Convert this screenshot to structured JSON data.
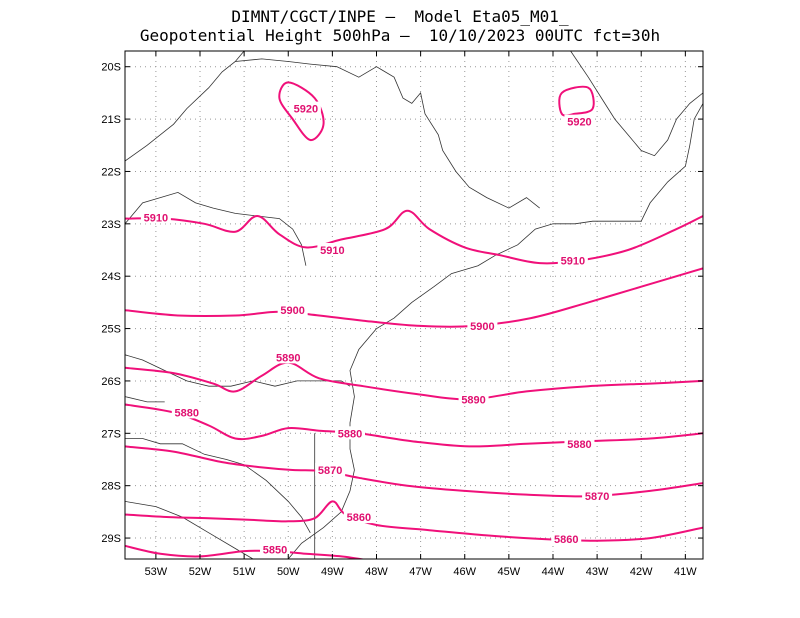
{
  "header": {
    "line1": "DIMNT/CGCT/INPE –  Model Eta05_M01_",
    "line2": "Geopotential Height 500hPa –  10/10/2023 00UTC fct=30h"
  },
  "axes": {
    "lat_labels": [
      "20S",
      "21S",
      "22S",
      "23S",
      "24S",
      "25S",
      "26S",
      "27S",
      "28S",
      "29S"
    ],
    "lon_labels": [
      "53W",
      "52W",
      "51W",
      "50W",
      "49W",
      "48W",
      "47W",
      "46W",
      "45W",
      "44W",
      "43W",
      "42W",
      "41W"
    ],
    "lat_range": [
      -29.4,
      -19.7
    ],
    "lon_range": [
      -53.7,
      -40.6
    ]
  },
  "colors": {
    "contour": "#f0107a",
    "label": "#e01070",
    "coast": "#333333",
    "grid": "#999999"
  },
  "contours": [
    {
      "value": "5920",
      "label_pos": [
        -49.6,
        -20.8
      ],
      "points": [
        [
          -50.0,
          -20.3
        ],
        [
          -49.4,
          -20.6
        ],
        [
          -49.2,
          -21.1
        ],
        [
          -49.5,
          -21.4
        ],
        [
          -49.9,
          -21.0
        ],
        [
          -50.2,
          -20.6
        ]
      ],
      "closed": true
    },
    {
      "value": "5920",
      "label_pos": [
        -43.4,
        -21.05
      ],
      "points": [
        [
          -43.8,
          -20.5
        ],
        [
          -43.2,
          -20.4
        ],
        [
          -43.1,
          -20.8
        ],
        [
          -43.5,
          -20.9
        ],
        [
          -43.8,
          -20.9
        ]
      ],
      "closed": true
    },
    {
      "value": "5910",
      "label_pos": [
        -53.0,
        -22.88
      ],
      "points": [
        [
          -53.7,
          -22.9
        ],
        [
          -52.8,
          -22.9
        ],
        [
          -51.9,
          -23.0
        ],
        [
          -51.2,
          -23.15
        ],
        [
          -50.7,
          -22.85
        ],
        [
          -50.2,
          -23.2
        ],
        [
          -49.6,
          -23.45
        ],
        [
          -48.8,
          -23.3
        ],
        [
          -47.8,
          -23.1
        ],
        [
          -47.3,
          -22.75
        ],
        [
          -46.8,
          -23.1
        ],
        [
          -46.0,
          -23.45
        ],
        [
          -45.2,
          -23.6
        ],
        [
          -44.3,
          -23.75
        ],
        [
          -43.4,
          -23.7
        ],
        [
          -42.3,
          -23.5
        ],
        [
          -41.2,
          -23.1
        ],
        [
          -40.6,
          -22.85
        ]
      ],
      "closed": false
    },
    {
      "value": "5910",
      "label_pos": [
        -49.0,
        -23.5
      ],
      "points": [],
      "closed": false
    },
    {
      "value": "5910",
      "label_pos": [
        -43.55,
        -23.7
      ],
      "points": [],
      "closed": false
    },
    {
      "value": "5900",
      "label_pos": [
        -49.9,
        -24.65
      ],
      "points": [
        [
          -53.7,
          -24.65
        ],
        [
          -52.5,
          -24.75
        ],
        [
          -51.2,
          -24.75
        ],
        [
          -50.2,
          -24.68
        ],
        [
          -49.3,
          -24.75
        ],
        [
          -48.3,
          -24.85
        ],
        [
          -47.0,
          -24.95
        ],
        [
          -45.8,
          -24.95
        ],
        [
          -44.5,
          -24.8
        ],
        [
          -43.2,
          -24.5
        ],
        [
          -42.0,
          -24.2
        ],
        [
          -40.6,
          -23.85
        ]
      ],
      "closed": false
    },
    {
      "value": "5900",
      "label_pos": [
        -45.6,
        -24.95
      ],
      "points": [],
      "closed": false
    },
    {
      "value": "5890",
      "label_pos": [
        -50.0,
        -25.55
      ],
      "points": [
        [
          -53.7,
          -25.75
        ],
        [
          -52.6,
          -25.85
        ],
        [
          -51.7,
          -26.05
        ],
        [
          -51.2,
          -26.2
        ],
        [
          -50.6,
          -25.9
        ],
        [
          -50.0,
          -25.65
        ],
        [
          -49.3,
          -25.95
        ],
        [
          -48.3,
          -26.1
        ],
        [
          -47.1,
          -26.25
        ],
        [
          -45.9,
          -26.35
        ],
        [
          -44.6,
          -26.2
        ],
        [
          -43.2,
          -26.1
        ],
        [
          -41.8,
          -26.05
        ],
        [
          -40.6,
          -26.0
        ]
      ],
      "closed": false
    },
    {
      "value": "5890",
      "label_pos": [
        -45.8,
        -26.35
      ],
      "points": [],
      "closed": false
    },
    {
      "value": "5880",
      "label_pos": [
        -52.3,
        -26.6
      ],
      "points": [
        [
          -53.7,
          -26.45
        ],
        [
          -52.6,
          -26.6
        ],
        [
          -51.8,
          -26.85
        ],
        [
          -51.2,
          -27.1
        ],
        [
          -50.6,
          -27.05
        ],
        [
          -50.0,
          -26.9
        ],
        [
          -49.3,
          -26.95
        ],
        [
          -48.4,
          -27.0
        ],
        [
          -47.2,
          -27.15
        ],
        [
          -45.9,
          -27.25
        ],
        [
          -44.6,
          -27.2
        ],
        [
          -43.2,
          -27.15
        ],
        [
          -41.8,
          -27.1
        ],
        [
          -40.6,
          -27.0
        ]
      ],
      "closed": false
    },
    {
      "value": "5880",
      "label_pos": [
        -48.6,
        -27.0
      ],
      "points": [],
      "closed": false
    },
    {
      "value": "5880",
      "label_pos": [
        -43.4,
        -27.2
      ],
      "points": [],
      "closed": false
    },
    {
      "value": "5870",
      "label_pos": [
        -49.05,
        -27.7
      ],
      "points": [
        [
          -53.7,
          -27.25
        ],
        [
          -52.6,
          -27.35
        ],
        [
          -51.5,
          -27.55
        ],
        [
          -50.6,
          -27.65
        ],
        [
          -49.9,
          -27.7
        ],
        [
          -49.2,
          -27.72
        ],
        [
          -48.4,
          -27.85
        ],
        [
          -47.3,
          -28.0
        ],
        [
          -46.0,
          -28.1
        ],
        [
          -44.6,
          -28.17
        ],
        [
          -43.2,
          -28.2
        ],
        [
          -41.8,
          -28.1
        ],
        [
          -40.6,
          -27.95
        ]
      ],
      "closed": false
    },
    {
      "value": "5870",
      "label_pos": [
        -43.0,
        -28.2
      ],
      "points": [],
      "closed": false
    },
    {
      "value": "5860",
      "label_pos": [
        -48.4,
        -28.6
      ],
      "points": [
        [
          -53.7,
          -28.55
        ],
        [
          -52.7,
          -28.6
        ],
        [
          -51.8,
          -28.62
        ],
        [
          -50.9,
          -28.65
        ],
        [
          -50.0,
          -28.68
        ],
        [
          -49.4,
          -28.62
        ],
        [
          -49.0,
          -28.3
        ],
        [
          -48.7,
          -28.55
        ],
        [
          -48.0,
          -28.75
        ],
        [
          -46.8,
          -28.85
        ],
        [
          -45.5,
          -28.95
        ],
        [
          -44.2,
          -29.02
        ],
        [
          -43.0,
          -29.05
        ],
        [
          -41.8,
          -29.0
        ],
        [
          -40.6,
          -28.8
        ]
      ],
      "closed": false
    },
    {
      "value": "5860",
      "label_pos": [
        -43.7,
        -29.02
      ],
      "points": [],
      "closed": false
    },
    {
      "value": "5850",
      "label_pos": [
        -50.3,
        -29.22
      ],
      "points": [
        [
          -53.7,
          -29.15
        ],
        [
          -52.9,
          -29.3
        ],
        [
          -52.0,
          -29.35
        ],
        [
          -51.0,
          -29.25
        ],
        [
          -50.3,
          -29.25
        ],
        [
          -49.6,
          -29.3
        ],
        [
          -48.8,
          -29.35
        ],
        [
          -48.0,
          -29.45
        ]
      ],
      "closed": false
    }
  ],
  "coastlines": [
    [
      [
        -53.7,
        -23.0
      ],
      [
        -53.3,
        -22.6
      ],
      [
        -52.9,
        -22.5
      ],
      [
        -52.5,
        -22.4
      ],
      [
        -52.1,
        -22.6
      ],
      [
        -51.7,
        -22.7
      ],
      [
        -51.2,
        -22.8
      ],
      [
        -50.7,
        -22.85
      ],
      [
        -50.2,
        -22.9
      ],
      [
        -49.9,
        -23.1
      ],
      [
        -49.7,
        -23.4
      ],
      [
        -49.6,
        -23.8
      ]
    ],
    [
      [
        -53.7,
        -21.8
      ],
      [
        -53.2,
        -21.5
      ],
      [
        -52.6,
        -21.1
      ],
      [
        -52.3,
        -20.8
      ],
      [
        -51.8,
        -20.4
      ],
      [
        -51.5,
        -20.1
      ],
      [
        -51.2,
        -19.9
      ],
      [
        -51.0,
        -19.7
      ]
    ],
    [
      [
        -51.2,
        -19.9
      ],
      [
        -50.6,
        -19.85
      ],
      [
        -50.0,
        -19.9
      ],
      [
        -49.5,
        -19.95
      ],
      [
        -48.9,
        -20.0
      ],
      [
        -48.4,
        -20.2
      ],
      [
        -48.0,
        -20.0
      ],
      [
        -47.6,
        -20.2
      ],
      [
        -47.4,
        -20.6
      ],
      [
        -47.2,
        -20.7
      ],
      [
        -47.0,
        -20.5
      ],
      [
        -46.9,
        -20.9
      ],
      [
        -46.6,
        -21.3
      ],
      [
        -46.5,
        -21.6
      ],
      [
        -46.2,
        -22.0
      ],
      [
        -45.9,
        -22.3
      ],
      [
        -45.5,
        -22.5
      ],
      [
        -45.0,
        -22.7
      ],
      [
        -44.6,
        -22.5
      ],
      [
        -44.3,
        -22.7
      ]
    ],
    [
      [
        -43.6,
        -19.7
      ],
      [
        -43.2,
        -20.2
      ],
      [
        -42.9,
        -20.6
      ],
      [
        -42.6,
        -21.0
      ],
      [
        -42.3,
        -21.3
      ],
      [
        -42.0,
        -21.6
      ],
      [
        -41.7,
        -21.7
      ],
      [
        -41.4,
        -21.4
      ],
      [
        -41.2,
        -21.0
      ],
      [
        -40.9,
        -20.7
      ],
      [
        -40.6,
        -20.5
      ]
    ],
    [
      [
        -48.0,
        -25.0
      ],
      [
        -47.6,
        -24.8
      ],
      [
        -47.2,
        -24.5
      ],
      [
        -46.7,
        -24.2
      ],
      [
        -46.3,
        -23.95
      ],
      [
        -45.7,
        -23.8
      ],
      [
        -45.3,
        -23.6
      ],
      [
        -44.8,
        -23.4
      ],
      [
        -44.4,
        -23.1
      ],
      [
        -44.0,
        -23.0
      ],
      [
        -43.5,
        -23.0
      ],
      [
        -43.1,
        -22.95
      ],
      [
        -42.6,
        -22.95
      ],
      [
        -42.0,
        -22.95
      ],
      [
        -41.8,
        -22.6
      ],
      [
        -41.4,
        -22.2
      ],
      [
        -41.0,
        -21.9
      ],
      [
        -40.9,
        -21.5
      ],
      [
        -40.8,
        -21.0
      ],
      [
        -40.6,
        -20.7
      ]
    ],
    [
      [
        -48.0,
        -25.0
      ],
      [
        -48.4,
        -25.4
      ],
      [
        -48.6,
        -25.8
      ],
      [
        -48.5,
        -26.3
      ],
      [
        -48.6,
        -26.8
      ],
      [
        -48.6,
        -27.3
      ],
      [
        -48.5,
        -27.7
      ],
      [
        -48.6,
        -28.1
      ],
      [
        -48.8,
        -28.5
      ],
      [
        -49.2,
        -28.8
      ],
      [
        -49.7,
        -29.1
      ],
      [
        -50.1,
        -29.5
      ]
    ],
    [
      [
        -53.7,
        -25.5
      ],
      [
        -53.3,
        -25.6
      ],
      [
        -52.8,
        -25.8
      ],
      [
        -52.3,
        -26.0
      ],
      [
        -51.8,
        -26.1
      ],
      [
        -51.3,
        -26.1
      ],
      [
        -50.8,
        -26.0
      ],
      [
        -50.3,
        -26.1
      ],
      [
        -49.8,
        -26.0
      ],
      [
        -49.3,
        -26.0
      ],
      [
        -48.8,
        -26.0
      ],
      [
        -48.6,
        -26.1
      ]
    ],
    [
      [
        -53.7,
        -27.1
      ],
      [
        -53.3,
        -27.1
      ],
      [
        -52.9,
        -27.2
      ],
      [
        -52.4,
        -27.2
      ],
      [
        -51.9,
        -27.4
      ],
      [
        -51.4,
        -27.5
      ],
      [
        -51.0,
        -27.6
      ],
      [
        -50.5,
        -27.9
      ],
      [
        -50.0,
        -28.3
      ],
      [
        -49.7,
        -28.6
      ],
      [
        -49.5,
        -28.9
      ]
    ],
    [
      [
        -49.4,
        -27.0
      ],
      [
        -49.4,
        -27.5
      ],
      [
        -49.4,
        -28.0
      ],
      [
        -49.4,
        -28.5
      ],
      [
        -49.4,
        -29.0
      ],
      [
        -49.4,
        -29.4
      ]
    ],
    [
      [
        -53.7,
        -26.3
      ],
      [
        -53.2,
        -26.4
      ],
      [
        -52.8,
        -26.4
      ]
    ],
    [
      [
        -53.7,
        -28.3
      ],
      [
        -53.0,
        -28.4
      ],
      [
        -52.4,
        -28.6
      ],
      [
        -51.8,
        -28.9
      ],
      [
        -51.2,
        -29.2
      ],
      [
        -50.8,
        -29.4
      ]
    ]
  ]
}
